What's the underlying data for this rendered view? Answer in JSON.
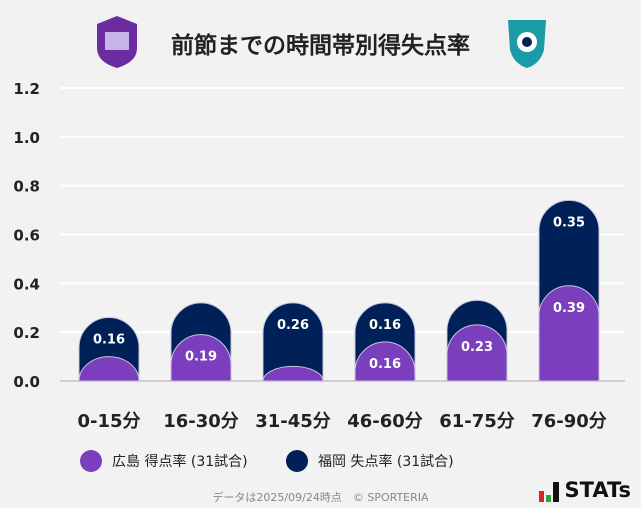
{
  "title": "前節までの時間帯別得失点率",
  "colors": {
    "hiroshima": "#7b3fbe",
    "fukuoka": "#002058"
  },
  "chart_data": {
    "type": "bar",
    "stacked": true,
    "categories": [
      "0-15分",
      "16-30分",
      "31-45分",
      "46-60分",
      "61-75分",
      "76-90分"
    ],
    "series": [
      {
        "name": "広島 得点率 (31試合)",
        "values": [
          0.1,
          0.19,
          0.06,
          0.16,
          0.23,
          0.39
        ],
        "labels": [
          "",
          "0.19",
          "",
          "0.16",
          "0.23",
          "0.39"
        ],
        "color": "#7b3fbe"
      },
      {
        "name": "福岡 失点率 (31試合)",
        "values": [
          0.16,
          0.13,
          0.26,
          0.16,
          0.1,
          0.35
        ],
        "labels": [
          "0.16",
          "",
          "0.26",
          "0.16",
          "",
          "0.35"
        ],
        "color": "#002058"
      }
    ],
    "yticks": [
      "0.0",
      "0.2",
      "0.4",
      "0.6",
      "0.8",
      "1.0",
      "1.2"
    ],
    "ylim": [
      0,
      1.2
    ],
    "grid": true,
    "legend": "bottom"
  },
  "legend": {
    "hiroshima": "広島 得点率 (31試合)",
    "fukuoka": "福岡 失点率 (31試合)"
  },
  "footer": "データは2025/09/24時点　© SPORTERIA",
  "brand": "STATs"
}
